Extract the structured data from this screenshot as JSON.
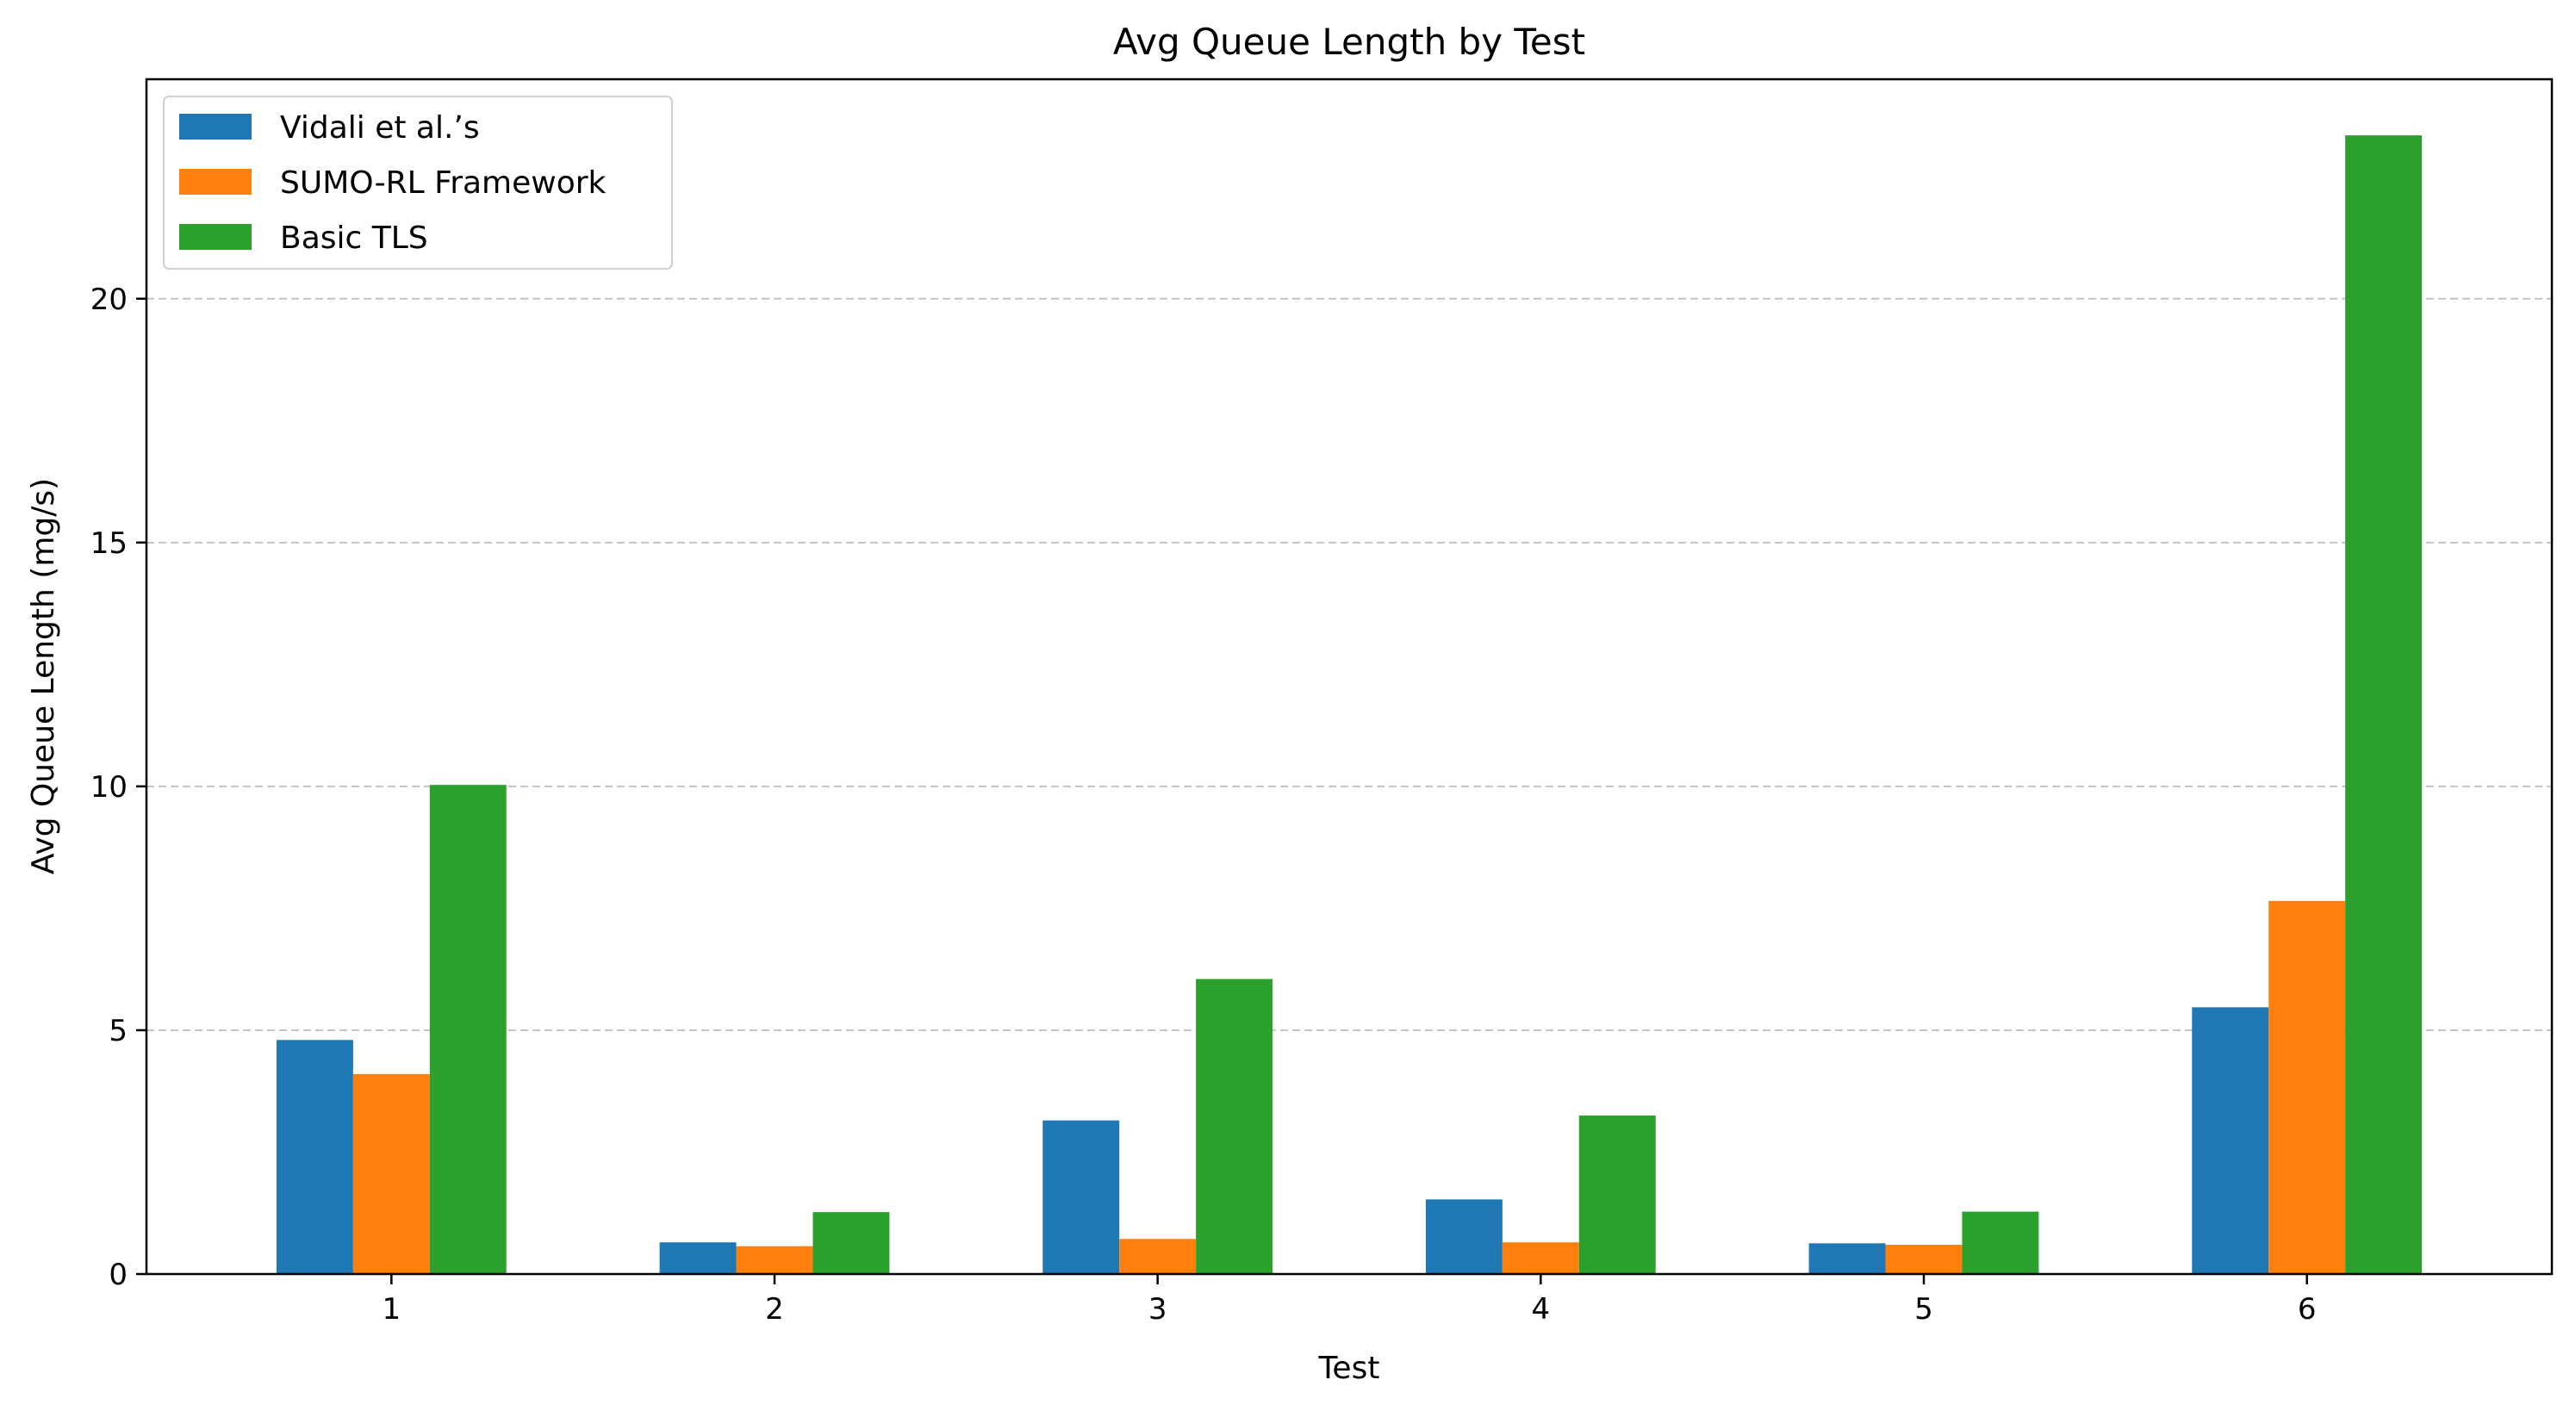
{
  "chart_data": {
    "type": "bar",
    "title": "Avg Queue Length by Test",
    "xlabel": "Test",
    "ylabel": "Avg Queue Length (mg/s)",
    "categories": [
      "1",
      "2",
      "3",
      "4",
      "5",
      "6"
    ],
    "series": [
      {
        "name": "Vidali et al.’s",
        "color": "#1f77b4",
        "values": [
          4.8,
          0.65,
          3.15,
          1.53,
          0.63,
          5.47
        ]
      },
      {
        "name": "SUMO-RL Framework",
        "color": "#ff7f0e",
        "values": [
          4.1,
          0.57,
          0.72,
          0.65,
          0.6,
          7.65
        ]
      },
      {
        "name": "Basic TLS",
        "color": "#2ca02c",
        "values": [
          10.03,
          1.27,
          6.05,
          3.25,
          1.28,
          23.35
        ]
      }
    ],
    "ylim": [
      0,
      24.5
    ],
    "yticks": [
      0,
      5,
      10,
      15,
      20
    ],
    "grid": "y-dashed",
    "legend_position": "top-left"
  }
}
